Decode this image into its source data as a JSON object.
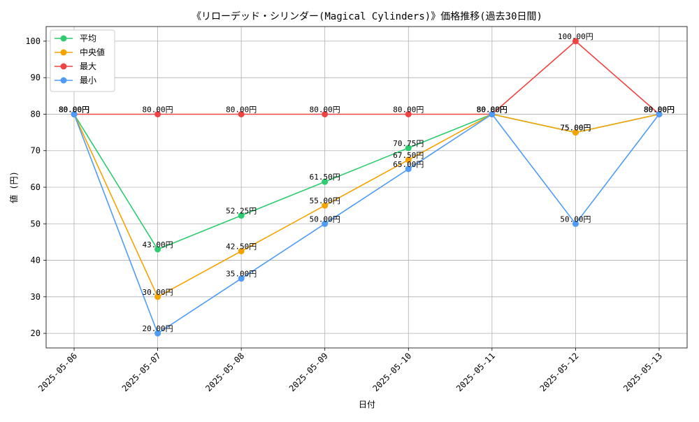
{
  "chart_data": {
    "type": "line",
    "title": "《リローデッド・シリンダー(Magical Cylinders)》価格推移(過去30日間)",
    "xlabel": "日付",
    "ylabel": "値 (円)",
    "categories": [
      "2025-05-06",
      "2025-05-07",
      "2025-05-08",
      "2025-05-09",
      "2025-05-10",
      "2025-05-11",
      "2025-05-12",
      "2025-05-13"
    ],
    "ylim": [
      16,
      104
    ],
    "yticks": [
      20,
      30,
      40,
      50,
      60,
      70,
      80,
      90,
      100
    ],
    "grid": true,
    "legend_position": "top-left",
    "value_suffix": "円",
    "series": [
      {
        "name": "平均",
        "color": "#2ecc71",
        "values": [
          80.0,
          43.0,
          52.25,
          61.5,
          70.75,
          80.0,
          75.0,
          80.0
        ]
      },
      {
        "name": "中央値",
        "color": "#f5a300",
        "values": [
          80.0,
          30.0,
          42.5,
          55.0,
          67.5,
          80.0,
          75.0,
          80.0
        ]
      },
      {
        "name": "最大",
        "color": "#ef4444",
        "values": [
          80.0,
          80.0,
          80.0,
          80.0,
          80.0,
          80.0,
          100.0,
          80.0
        ]
      },
      {
        "name": "最小",
        "color": "#4f9bf5",
        "values": [
          80.0,
          20.0,
          35.0,
          50.0,
          65.0,
          80.0,
          50.0,
          80.0
        ]
      }
    ]
  }
}
